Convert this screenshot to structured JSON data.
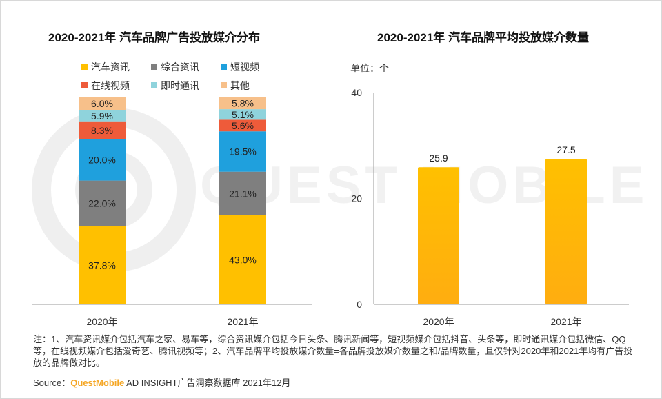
{
  "left_chart": {
    "title": "2020-2021年 汽车品牌广告投放媒介分布"
  },
  "right_chart": {
    "title": "2020-2021年 汽车品牌平均投放媒介数量",
    "unit": "单位：个"
  },
  "notes": "注：1、汽车资讯媒介包括汽车之家、易车等，综合资讯媒介包括今日头条、腾讯新闻等，短视频媒介包括抖音、头条等，即时通讯媒介包括微信、QQ等，在线视频媒介包括爱奇艺、腾讯视频等；2、汽车品牌平均投放媒介数量=各品牌投放媒介数量之和/品牌数量，且仅针对2020年和2021年均有广告投放的品牌做对比。",
  "source": {
    "label": "Source：",
    "brand": "QuestMobile",
    "text": " AD INSIGHT广告洞察数据库 2021年12月"
  },
  "watermark": "QUEST MOBILE",
  "colors": {
    "car_info": "#ffc000",
    "general_info": "#7f7f7f",
    "short_video": "#1fa0dd",
    "online_video": "#ee5b3a",
    "im": "#8fd3dc",
    "other": "#f7c08a"
  },
  "chart_data": [
    {
      "type": "bar",
      "stacked": true,
      "categories": [
        "2020年",
        "2021年"
      ],
      "series": [
        {
          "name": "汽车资讯",
          "values": [
            37.8,
            43.0
          ],
          "labels": [
            "37.8%",
            "43.0%"
          ],
          "color": "#ffc000"
        },
        {
          "name": "综合资讯",
          "values": [
            22.0,
            21.1
          ],
          "labels": [
            "22.0%",
            "21.1%"
          ],
          "color": "#7f7f7f"
        },
        {
          "name": "短视频",
          "values": [
            20.0,
            19.5
          ],
          "labels": [
            "20.0%",
            "19.5%"
          ],
          "color": "#1fa0dd"
        },
        {
          "name": "在线视频",
          "values": [
            8.3,
            5.6
          ],
          "labels": [
            "8.3%",
            "5.6%"
          ],
          "color": "#ee5b3a"
        },
        {
          "name": "即时通讯",
          "values": [
            5.9,
            5.1
          ],
          "labels": [
            "5.9%",
            "5.1%"
          ],
          "color": "#8fd3dc"
        },
        {
          "name": "其他",
          "values": [
            6.0,
            5.8
          ],
          "labels": [
            "6.0%",
            "5.8%"
          ],
          "color": "#f7c08a"
        }
      ],
      "ylim": [
        0,
        100
      ],
      "legend": "top",
      "grid": false
    },
    {
      "type": "bar",
      "categories": [
        "2020年",
        "2021年"
      ],
      "values": [
        25.9,
        27.5
      ],
      "labels": [
        "25.9",
        "27.5"
      ],
      "color": "#ffc000",
      "ylim": [
        0,
        40
      ],
      "yticks": [
        "0",
        "20",
        "40"
      ],
      "grid": false
    }
  ]
}
